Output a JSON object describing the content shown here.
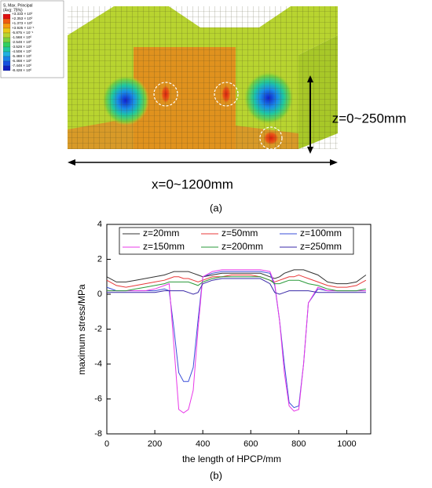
{
  "panel_a": {
    "legend_title": "S, Max. Principal",
    "legend_subtitle": "(Avg: 75%)",
    "legend_values": [
      "+3.333 × 10⁰",
      "+2.353 × 10⁰",
      "+1.373 × 10⁰",
      "+3.925 × 10⁻¹",
      "-5.875 × 10⁻¹",
      "-1.568 × 10⁰",
      "-2.548 × 10⁰",
      "-3.528 × 10⁰",
      "-4.508 × 10⁰",
      "-5.488 × 10⁰",
      "-6.468 × 10⁰",
      "-7.448 × 10⁰",
      "-8.428 × 10⁰"
    ],
    "x_label": "x=0~1200mm",
    "z_label": "z=0~250mm",
    "caption": "(a)"
  },
  "chart_data": {
    "type": "line",
    "caption": "(b)",
    "x_label": "the length of HPCP/mm",
    "y_label": "maximum stress/MPa",
    "x": [
      0,
      40,
      80,
      120,
      160,
      200,
      240,
      260,
      280,
      300,
      320,
      340,
      360,
      380,
      400,
      440,
      480,
      520,
      560,
      600,
      640,
      680,
      700,
      720,
      740,
      760,
      780,
      800,
      820,
      840,
      880,
      920,
      960,
      1000,
      1040,
      1080
    ],
    "series": [
      {
        "name": "z=20mm",
        "color": "#333333",
        "values": [
          1.0,
          0.7,
          0.7,
          0.8,
          0.9,
          1.0,
          1.1,
          1.2,
          1.3,
          1.3,
          1.3,
          1.3,
          1.2,
          1.1,
          1.0,
          1.1,
          1.2,
          1.2,
          1.2,
          1.2,
          1.2,
          1.0,
          0.9,
          1.0,
          1.2,
          1.3,
          1.4,
          1.4,
          1.4,
          1.3,
          1.1,
          0.7,
          0.6,
          0.6,
          0.7,
          1.1
        ]
      },
      {
        "name": "z=50mm",
        "color": "#e8393a",
        "values": [
          0.8,
          0.5,
          0.4,
          0.5,
          0.6,
          0.7,
          0.8,
          0.9,
          1.0,
          1.0,
          0.9,
          0.9,
          0.8,
          0.7,
          0.8,
          1.0,
          1.0,
          1.1,
          1.1,
          1.1,
          1.0,
          0.8,
          0.7,
          0.8,
          0.9,
          1.0,
          1.0,
          1.1,
          1.0,
          0.9,
          0.7,
          0.5,
          0.4,
          0.4,
          0.5,
          0.8
        ]
      },
      {
        "name": "z=100mm",
        "color": "#3a4fd8",
        "values": [
          0.4,
          0.2,
          0.2,
          0.2,
          0.2,
          0.2,
          0.3,
          0.2,
          -2.0,
          -4.5,
          -5.0,
          -5.0,
          -4.2,
          -1.5,
          1.0,
          1.2,
          1.3,
          1.3,
          1.3,
          1.3,
          1.3,
          1.2,
          0.5,
          -1.5,
          -4.0,
          -6.2,
          -6.5,
          -6.4,
          -4.0,
          -0.5,
          0.3,
          0.2,
          0.2,
          0.2,
          0.2,
          0.2
        ]
      },
      {
        "name": "z=150mm",
        "color": "#e838e8",
        "values": [
          0.2,
          0.2,
          0.2,
          0.2,
          0.2,
          0.3,
          0.5,
          0.6,
          -3.0,
          -6.6,
          -6.8,
          -6.6,
          -5.5,
          -2.0,
          1.0,
          1.3,
          1.4,
          1.4,
          1.4,
          1.4,
          1.4,
          1.3,
          0.6,
          -1.5,
          -4.5,
          -6.4,
          -6.7,
          -6.6,
          -4.0,
          -0.5,
          0.4,
          0.2,
          0.2,
          0.2,
          0.2,
          0.2
        ]
      },
      {
        "name": "z=200mm",
        "color": "#2a9a3a",
        "values": [
          0.2,
          0.2,
          0.2,
          0.3,
          0.4,
          0.5,
          0.6,
          0.7,
          0.7,
          0.7,
          0.7,
          0.7,
          0.6,
          0.5,
          0.7,
          0.9,
          1.0,
          1.0,
          1.0,
          1.0,
          1.0,
          0.8,
          0.6,
          0.6,
          0.7,
          0.8,
          0.8,
          0.8,
          0.7,
          0.6,
          0.5,
          0.3,
          0.2,
          0.2,
          0.2,
          0.3
        ]
      },
      {
        "name": "z=250mm",
        "color": "#3a2aa8",
        "values": [
          0.1,
          0.1,
          0.1,
          0.1,
          0.1,
          0.1,
          0.2,
          0.2,
          0.2,
          0.2,
          0.2,
          0.1,
          0.0,
          0.1,
          0.6,
          0.8,
          0.9,
          0.9,
          0.9,
          0.9,
          0.9,
          0.6,
          0.1,
          0.0,
          0.1,
          0.2,
          0.2,
          0.2,
          0.2,
          0.2,
          0.1,
          0.1,
          0.1,
          0.1,
          0.1,
          0.1
        ]
      }
    ],
    "xlim": [
      0,
      1100
    ],
    "xticks": [
      0,
      200,
      400,
      600,
      800,
      1000
    ],
    "ylim": [
      -8,
      4
    ],
    "yticks": [
      -8,
      -6,
      -4,
      -2,
      0,
      2,
      4
    ],
    "legend": "top"
  }
}
